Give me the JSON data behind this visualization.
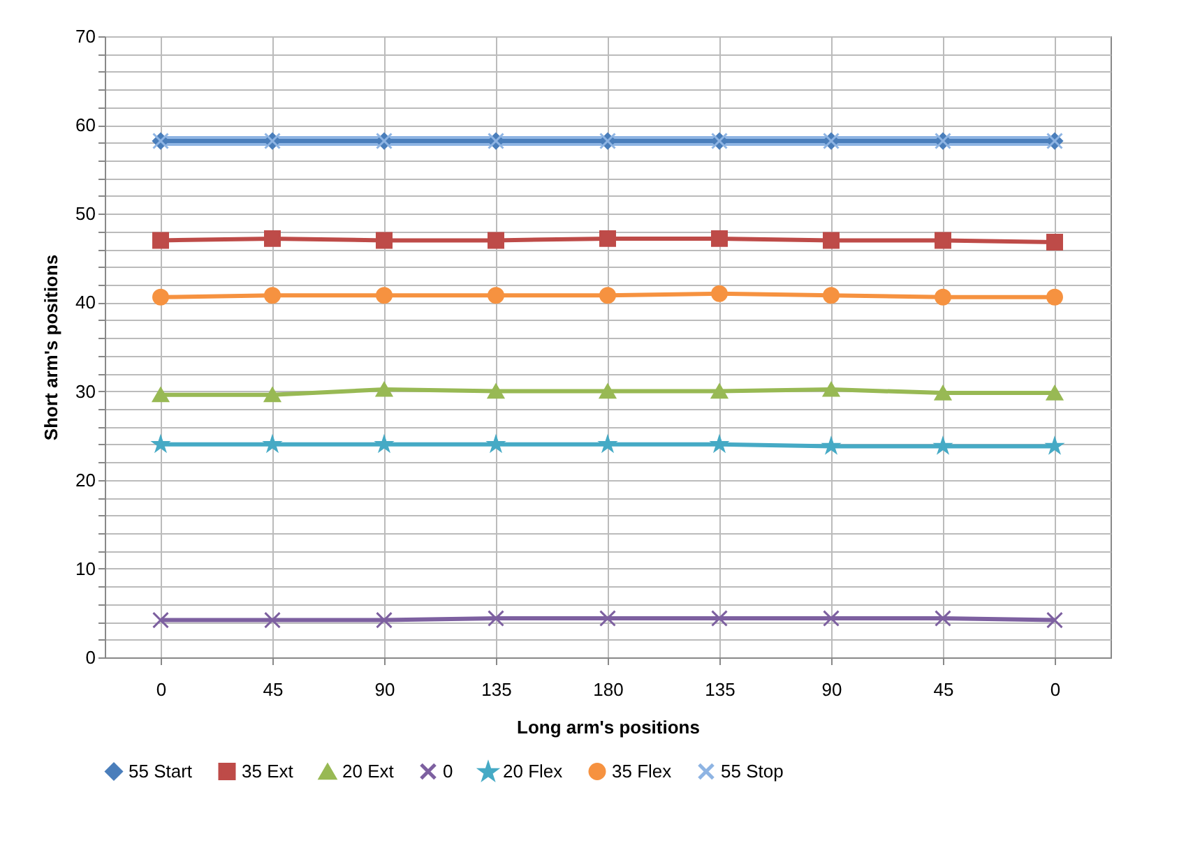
{
  "chart_data": {
    "type": "line",
    "xlabel": "Long arm's positions",
    "ylabel": "Short arm's positions",
    "categories": [
      "0",
      "45",
      "90",
      "135",
      "180",
      "135",
      "90",
      "45",
      "0"
    ],
    "ylim": [
      0,
      70
    ],
    "yticks": [
      0,
      {
        "value": 2,
        "label": null
      },
      {
        "value": 4,
        "label": null
      },
      {
        "value": 6,
        "label": null
      },
      {
        "value": 8,
        "label": null
      },
      10,
      {
        "value": 12,
        "label": null
      },
      {
        "value": 14,
        "label": null
      },
      {
        "value": 16,
        "label": null
      },
      {
        "value": 18,
        "label": null
      },
      20,
      {
        "value": 22,
        "label": null
      },
      {
        "value": 24,
        "label": null
      },
      {
        "value": 26,
        "label": null
      },
      {
        "value": 28,
        "label": null
      },
      30,
      {
        "value": 32,
        "label": null
      },
      {
        "value": 34,
        "label": null
      },
      {
        "value": 36,
        "label": null
      },
      {
        "value": 38,
        "label": null
      },
      40,
      {
        "value": 42,
        "label": null
      },
      {
        "value": 44,
        "label": null
      },
      {
        "value": 46,
        "label": null
      },
      {
        "value": 48,
        "label": null
      },
      50,
      {
        "value": 52,
        "label": null
      },
      {
        "value": 54,
        "label": null
      },
      {
        "value": 56,
        "label": null
      },
      {
        "value": 58,
        "label": null
      },
      60,
      {
        "value": 62,
        "label": null
      },
      {
        "value": 64,
        "label": null
      },
      {
        "value": 66,
        "label": null
      },
      {
        "value": 68,
        "label": null
      },
      70
    ],
    "grid": true,
    "legend": "bottom",
    "series": [
      {
        "name": "55 Start",
        "color": "#4a7ebb",
        "marker": "diamond",
        "values": [
          58.2,
          58.2,
          58.2,
          58.2,
          58.2,
          58.2,
          58.2,
          58.2,
          58.2
        ]
      },
      {
        "name": "35 Ext",
        "color": "#be4b48",
        "marker": "square",
        "values": [
          47,
          47.2,
          47,
          47,
          47.2,
          47.2,
          47,
          47,
          46.8
        ]
      },
      {
        "name": "20 Ext",
        "color": "#98b954",
        "marker": "triangle",
        "values": [
          29.6,
          29.6,
          30.2,
          30,
          30,
          30,
          30.2,
          29.8,
          29.8
        ]
      },
      {
        "name": "0",
        "color": "#7d60a0",
        "marker": "cross",
        "values": [
          4.2,
          4.2,
          4.2,
          4.4,
          4.4,
          4.4,
          4.4,
          4.4,
          4.2
        ]
      },
      {
        "name": "20 Flex",
        "color": "#46aac5",
        "marker": "star",
        "values": [
          24,
          24,
          24,
          24,
          24,
          24,
          23.8,
          23.8,
          23.8
        ]
      },
      {
        "name": "35 Flex",
        "color": "#f69240",
        "marker": "circle",
        "values": [
          40.6,
          40.8,
          40.8,
          40.8,
          40.8,
          41,
          40.8,
          40.6,
          40.6
        ]
      },
      {
        "name": "55 Stop",
        "color": "#8eb4e3",
        "marker": "cross",
        "values": [
          58.2,
          58.2,
          58.2,
          58.2,
          58.2,
          58.2,
          58.2,
          58.2,
          58.2
        ]
      }
    ]
  }
}
